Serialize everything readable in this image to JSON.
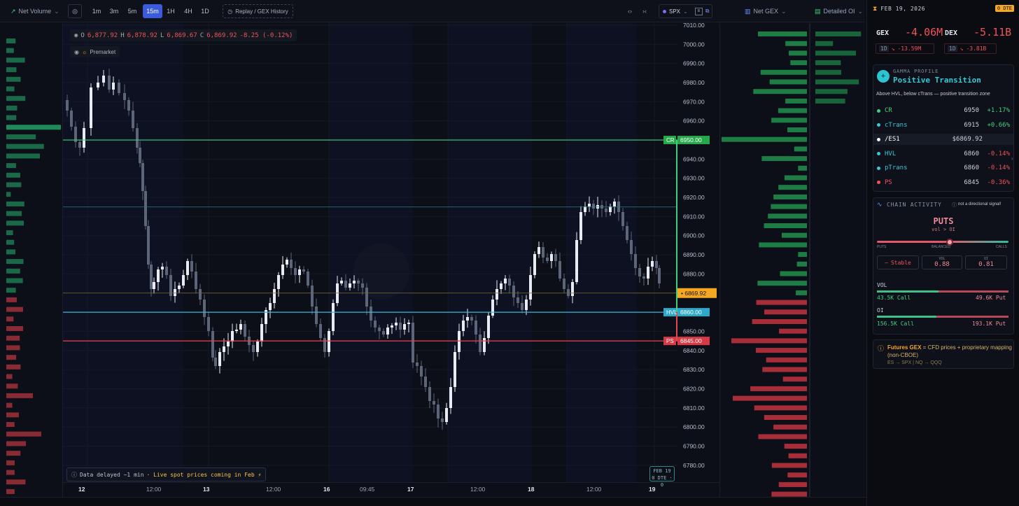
{
  "toolbar": {
    "net_volume": "Net Volume",
    "timeframes": [
      "1m",
      "3m",
      "5m",
      "15m",
      "1H",
      "4H",
      "1D"
    ],
    "active_timeframe": "15m",
    "replay": "Replay / GEX History",
    "symbol": "SPX",
    "net_gex": "Net GEX",
    "detailed_oi": "Detailed OI"
  },
  "ohlc": {
    "o_label": "O",
    "o": "6,877.92",
    "h_label": "H",
    "h": "6,878.92",
    "l_label": "L",
    "l": "6,869.67",
    "c_label": "C",
    "c": "6,869.92",
    "change": "-8.25 (-0.12%)"
  },
  "premarket": "Premarket",
  "delay_notice": {
    "text": "Data delayed ~1 min",
    "highlight": "· Live spot prices coming in Feb ⚡"
  },
  "date_box": {
    "date": "FEB 19",
    "dte": "0 DTE · 0"
  },
  "price_axis": [
    "7010.00",
    "7000.00",
    "6990.00",
    "6980.00",
    "6970.00",
    "6960.00",
    "6950.00",
    "6940.00",
    "6930.00",
    "6920.00",
    "6910.00",
    "6900.00",
    "6890.00",
    "6880.00",
    "6870.00",
    "6860.00",
    "6850.00",
    "6840.00",
    "6830.00",
    "6820.00",
    "6810.00",
    "6800.00",
    "6790.00",
    "6780.00"
  ],
  "level_tags": {
    "cr": {
      "label": "CR",
      "price": "6950.00"
    },
    "current": {
      "label": "6869.92"
    },
    "hvl": {
      "label": "HVL",
      "price": "6860.00"
    },
    "ps": {
      "label": "PS",
      "price": "6845.00"
    }
  },
  "time_axis": [
    "12",
    "12:00",
    "13",
    "12:00",
    "16",
    "09:45",
    "17",
    "12:00",
    "18",
    "12:00",
    "19"
  ],
  "colors": {
    "green": "#3fd07f",
    "red": "#e54451",
    "cyan": "#3ab7d8",
    "amber": "#f5a623",
    "candle_up": "#e8ecf2",
    "candle_down": "#5d6578"
  },
  "panel": {
    "date": "FEB 19, 2026",
    "dte_badge": "0 DTE",
    "gex_label": "GEX",
    "gex_value": "-4.06M",
    "gex_period": "1D",
    "gex_change": "-13.59M",
    "dex_label": "DEX",
    "dex_value": "-5.11B",
    "dex_period": "1D",
    "dex_change": "-3.81B",
    "gamma_profile_label": "GAMMA PROFILE",
    "gamma_profile_value": "Positive Transition",
    "gamma_desc": "Above HVL, below cTrans — positive transition zone",
    "levels": [
      {
        "name": "CR",
        "price": "6950",
        "pct": "+1.17%"
      },
      {
        "name": "cTrans",
        "price": "6915",
        "pct": "+0.66%"
      },
      {
        "name": "/ES1",
        "price": "$6869.92",
        "pct": ""
      },
      {
        "name": "HVL",
        "price": "6860",
        "pct": "-0.14%"
      },
      {
        "name": "pTrans",
        "price": "6860",
        "pct": "-0.14%"
      },
      {
        "name": "PS",
        "price": "6845",
        "pct": "-0.36%"
      }
    ],
    "chain_activity_label": "CHAIN ACTIVITY",
    "chain_note": "not a directional signal!",
    "chain_side": "PUTS",
    "chain_sub": "vol > OI",
    "slider_left": "PUTS",
    "slider_mid": "BALANCED",
    "slider_right": "CALLS",
    "stable_label": "Stable",
    "vol_label": "VOL",
    "vol_ratio": "0.88",
    "oi_label": "OI",
    "oi_ratio": "0.81",
    "vol_section": "VOL",
    "vol_call": "43.5K Call",
    "vol_put": "49.6K Put",
    "oi_section": "OI",
    "oi_call": "156.5K Call",
    "oi_put": "193.1K Put",
    "futures_title": "Futures GEX",
    "futures_text": " = CFD prices + proprietary mapping (non-CBOE)",
    "futures_map": "ES → SPX | NQ → QQQ"
  }
}
